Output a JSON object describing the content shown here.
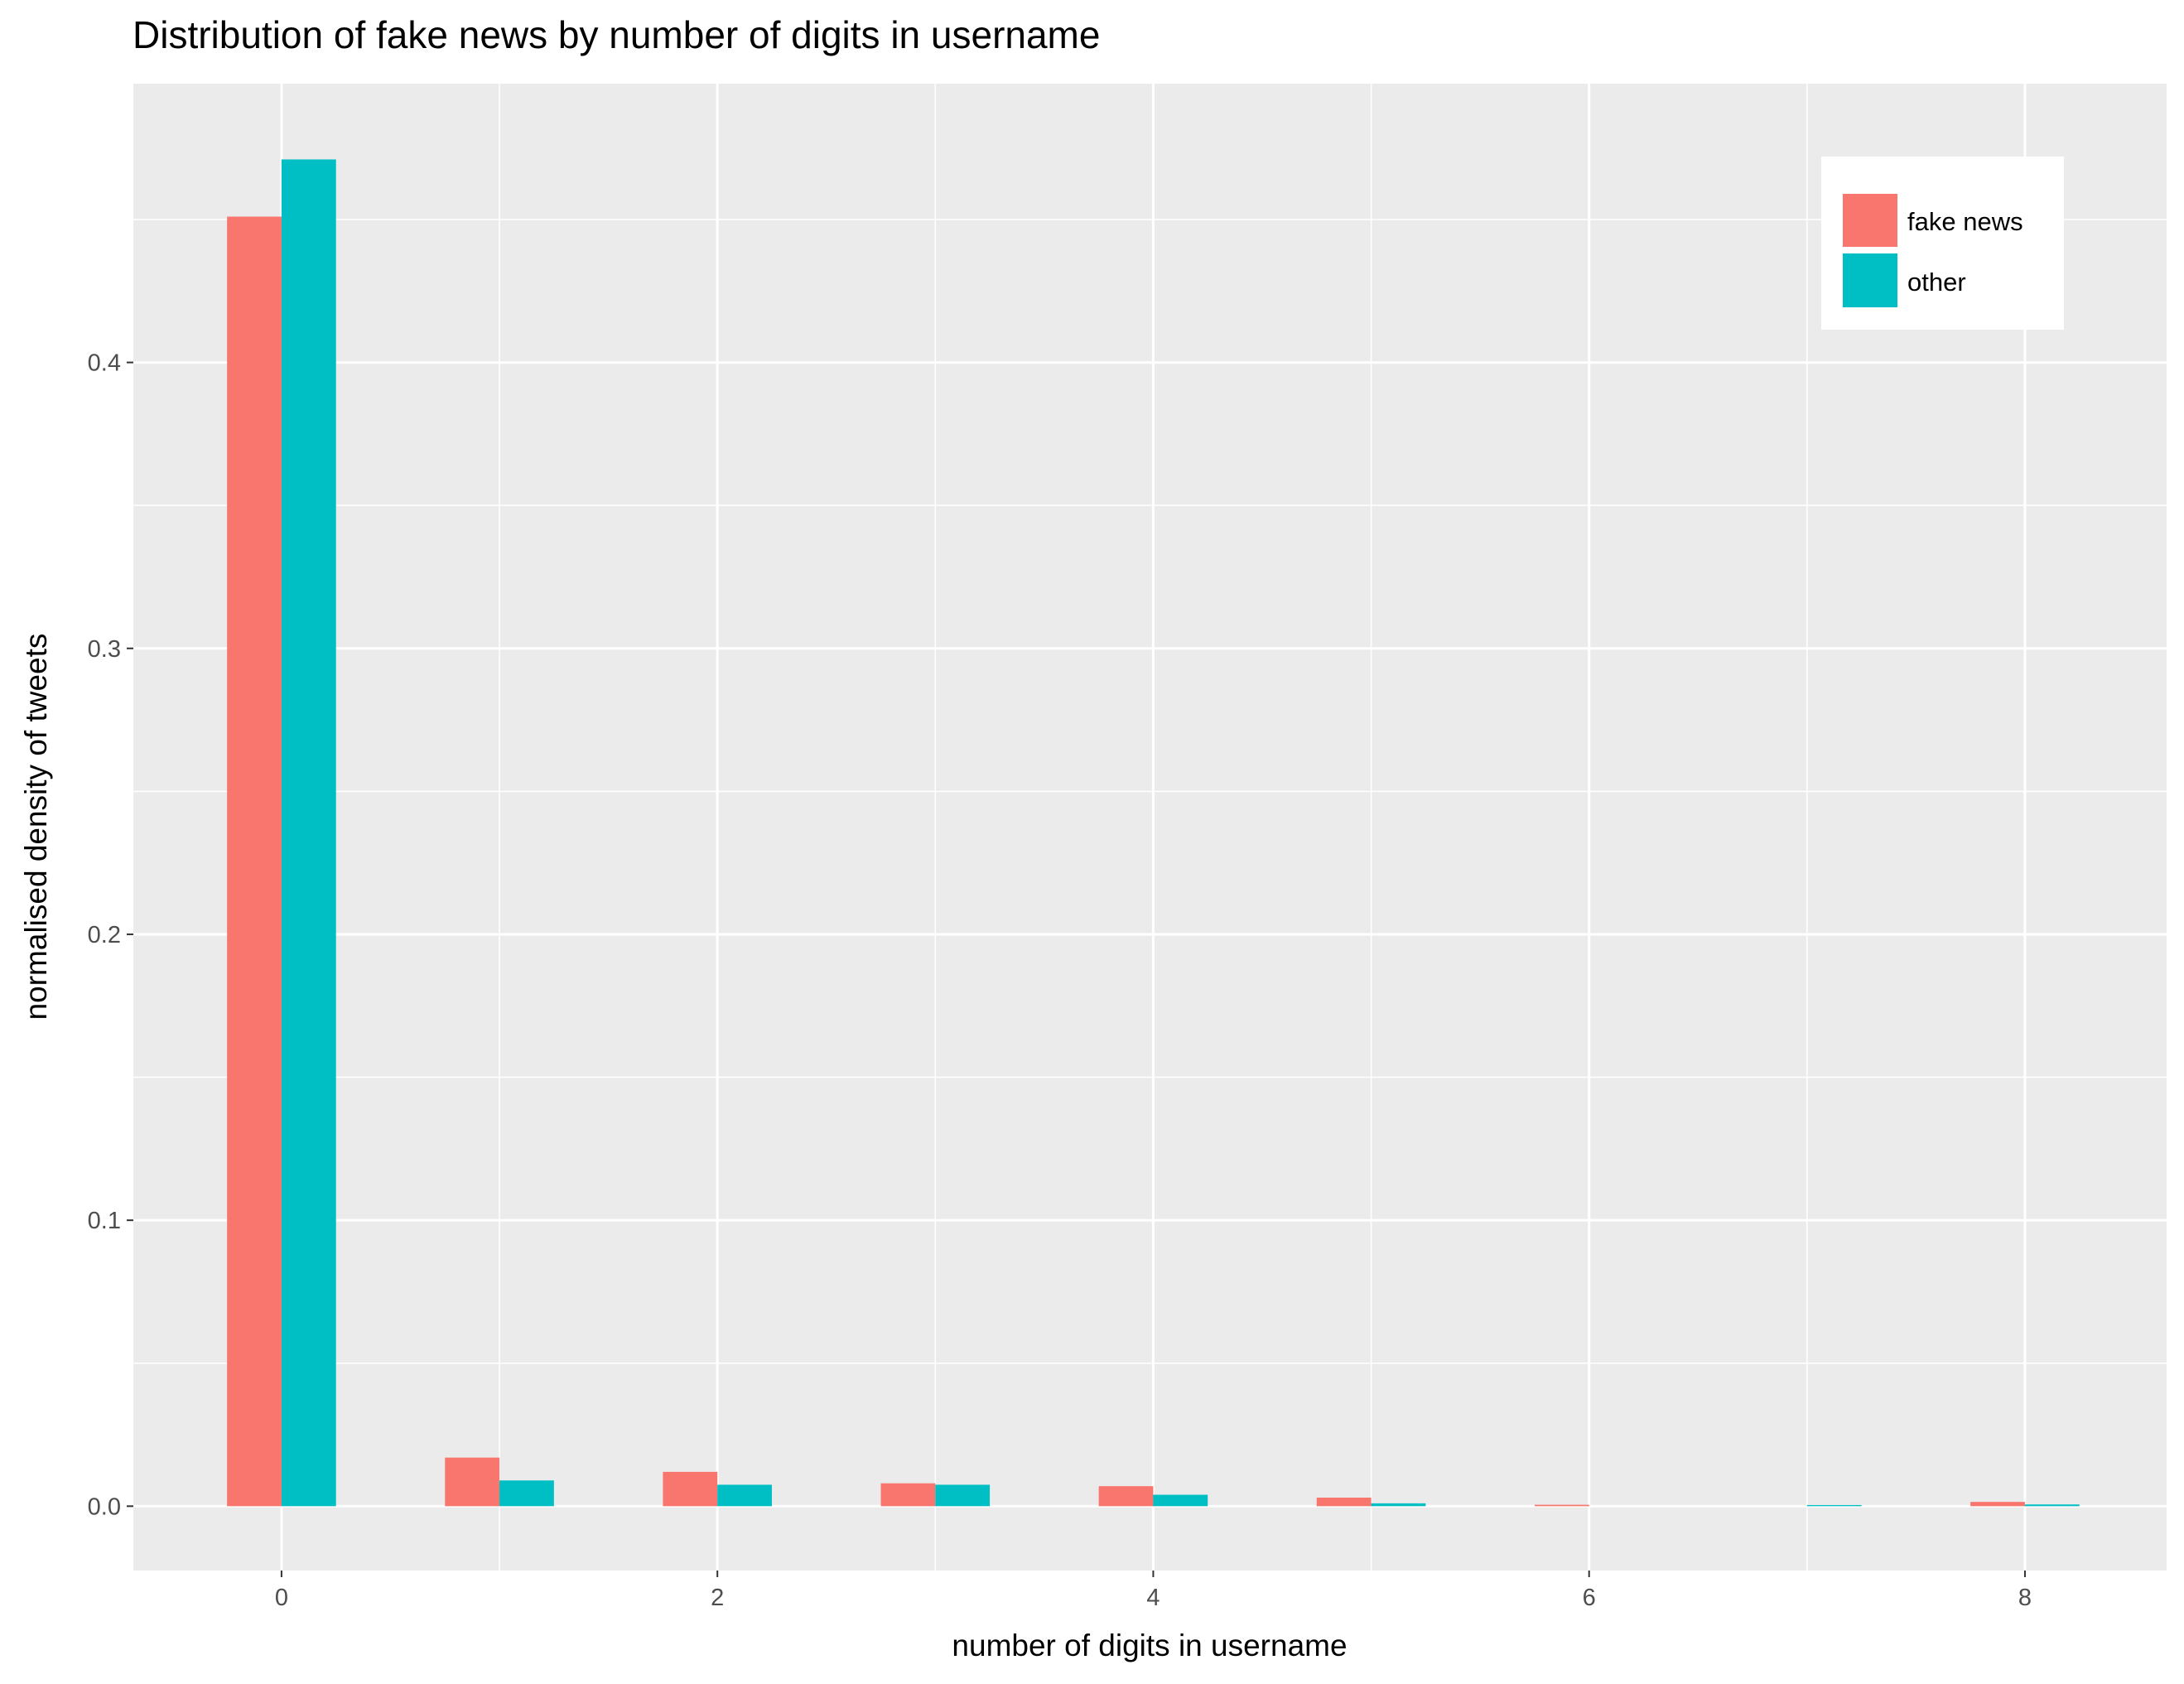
{
  "chart_data": {
    "type": "bar",
    "title": "Distribution of fake news by number of digits in username",
    "xlabel": "number of digits in username",
    "ylabel": "normalised density of tweets",
    "x": [
      0,
      1,
      2,
      3,
      4,
      5,
      6,
      7,
      8
    ],
    "series": [
      {
        "name": "fake news",
        "color": "#F8766D",
        "values": [
          0.451,
          0.017,
          0.012,
          0.008,
          0.007,
          0.003,
          0.0005,
          0.0,
          0.0015
        ]
      },
      {
        "name": "other",
        "color": "#00BFC4",
        "values": [
          0.471,
          0.009,
          0.0075,
          0.0075,
          0.004,
          0.001,
          0.0,
          0.0004,
          0.0006
        ]
      }
    ],
    "x_ticks": [
      "0",
      "2",
      "4",
      "6",
      "8"
    ],
    "y_ticks": [
      "0.0",
      "0.1",
      "0.2",
      "0.3",
      "0.4"
    ],
    "xlim": [
      -0.68,
      8.65
    ],
    "ylim": [
      -0.0225,
      0.4975
    ],
    "grid": true,
    "panel_background": "#EBEBEB",
    "legend_position": "top-right"
  }
}
